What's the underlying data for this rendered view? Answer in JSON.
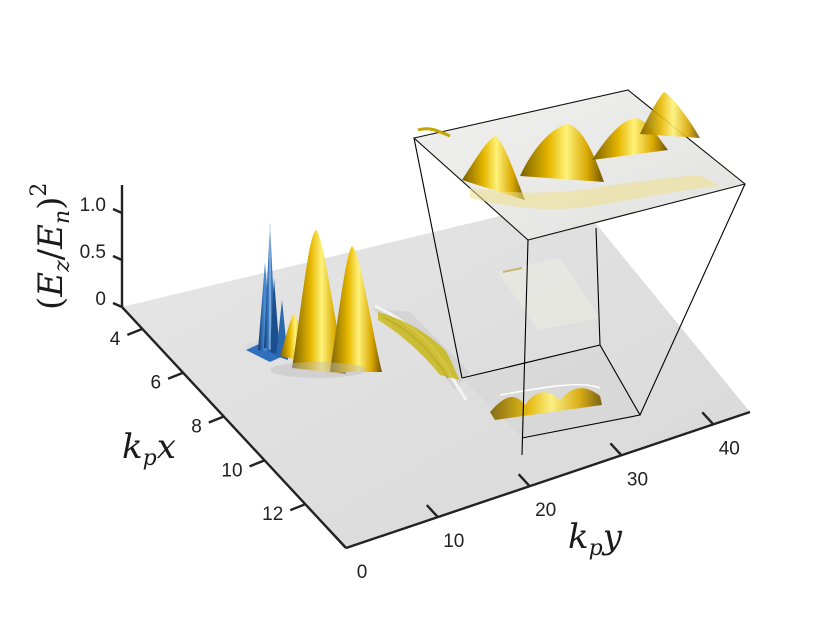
{
  "chart_data": {
    "type": "surface",
    "zlabel": "(E_z/E_n)^2",
    "zlabel_parts": {
      "open": "(",
      "num": "E",
      "num_sub": "z",
      "slash": "/",
      "den": "E",
      "den_sub": "n",
      "close": ")",
      "power": "2"
    },
    "xlabel": "k_p x",
    "xlabel_parts": {
      "k": "k",
      "sub": "p",
      "var": "x"
    },
    "ylabel": "k_p y",
    "ylabel_parts": {
      "k": "k",
      "sub": "p",
      "var": "y"
    },
    "x_ticks": [
      4,
      6,
      8,
      10,
      12
    ],
    "y_ticks": [
      0,
      10,
      20,
      30,
      40
    ],
    "z_ticks": [
      0,
      0.5,
      1.0
    ],
    "z_tick_labels": [
      "0",
      "0.5",
      "1.0"
    ],
    "xlim": [
      3,
      14
    ],
    "ylim": [
      0,
      44
    ],
    "zlim": [
      0,
      1.2
    ],
    "colors": {
      "positive": "#f2c300",
      "positive_dark": "#8a6d00",
      "negative": "#1f5fa8",
      "plane": "#dcdcdc"
    },
    "peaks": [
      {
        "kpx": 5.6,
        "kpy": 4,
        "z": 1.1,
        "sign": "negative"
      },
      {
        "kpx": 5.3,
        "kpy": 6,
        "z": 0.65,
        "sign": "positive"
      },
      {
        "kpx": 5.0,
        "kpy": 9,
        "z": 1.2,
        "sign": "positive"
      },
      {
        "kpx": 4.6,
        "kpy": 12,
        "z": 1.0,
        "sign": "positive"
      },
      {
        "kpx": 4.4,
        "kpy": 15,
        "z": 0.12,
        "sign": "positive"
      },
      {
        "kpx": 4.2,
        "kpy": 17,
        "z": 0.25,
        "sign": "positive"
      }
    ],
    "zoom_inset": {
      "region_kpy": [
        26,
        38
      ],
      "crests": 4,
      "magnified": true
    }
  }
}
